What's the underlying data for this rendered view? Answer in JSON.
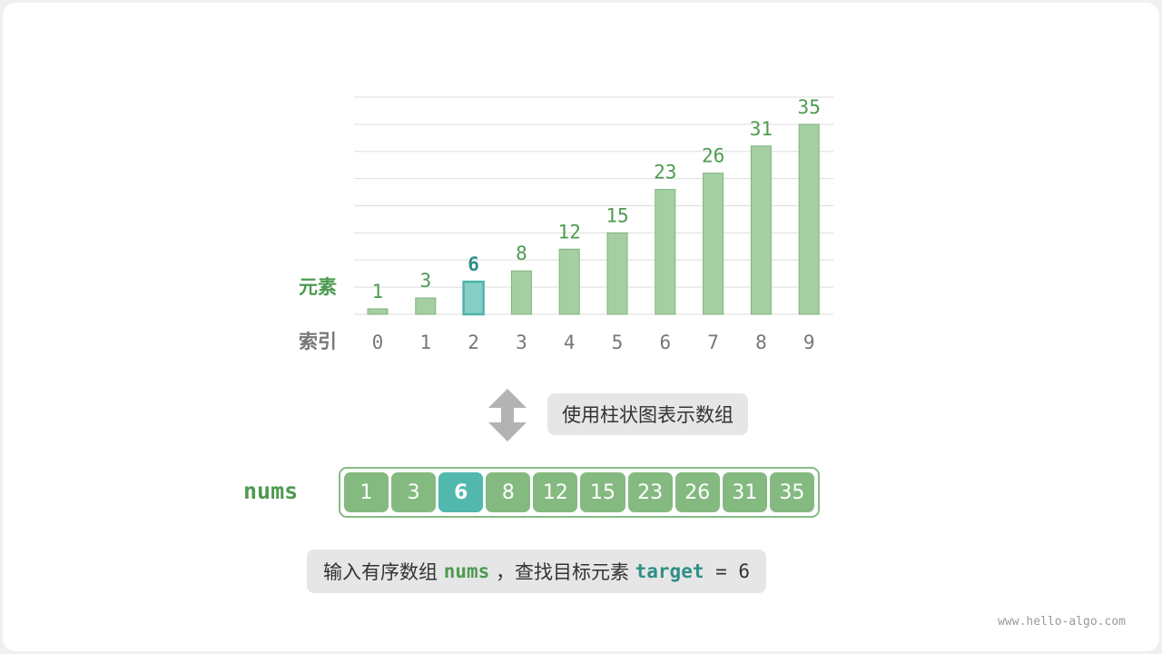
{
  "chart_data": {
    "type": "bar",
    "categories": [
      "0",
      "1",
      "2",
      "3",
      "4",
      "5",
      "6",
      "7",
      "8",
      "9"
    ],
    "values": [
      1,
      3,
      6,
      8,
      12,
      15,
      23,
      26,
      31,
      35
    ],
    "highlight_index": 2,
    "ylim": [
      0,
      40
    ],
    "grid": true,
    "ylabel": "元素",
    "xlabel": "索引",
    "colors": {
      "bar": "#a5cfa3",
      "bar_edge": "#7db37b",
      "highlight": "#87cfc6",
      "highlight_edge": "#4cb5aa",
      "label": "#4e9a50",
      "highlight_label": "#2f8f86",
      "tick": "#777777",
      "grid": "#dddddd"
    }
  },
  "arrow_label": "使用柱状图表示数组",
  "array": {
    "name": "nums",
    "values": [
      "1",
      "3",
      "6",
      "8",
      "12",
      "15",
      "23",
      "26",
      "31",
      "35"
    ],
    "highlight_index": 2
  },
  "caption": {
    "prefix": "输入有序数组 ",
    "var": "nums",
    "middle": " ，查找目标元素 ",
    "target": "target",
    "suffix": " = 6"
  },
  "watermark": "www.hello-algo.com"
}
